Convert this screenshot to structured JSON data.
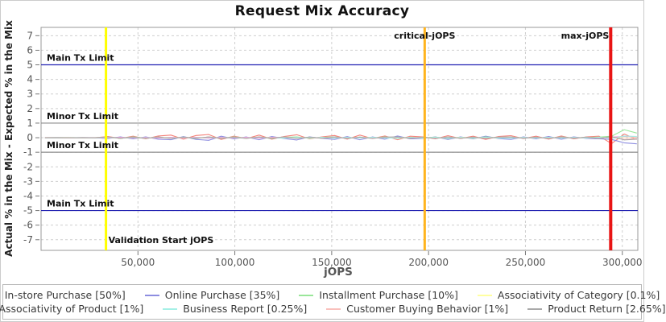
{
  "chart_data": {
    "type": "line",
    "title": "Request Mix Accuracy",
    "xlabel": "jOPS",
    "ylabel": "Actual % in the Mix - Expected % in the Mix",
    "xlim": [
      0,
      308000
    ],
    "ylim": [
      -7.73,
      7.57
    ],
    "grid": true,
    "legend_position": "bottom",
    "x_ticks": [
      {
        "v": 50000,
        "label": "50,000"
      },
      {
        "v": 100000,
        "label": "100,000"
      },
      {
        "v": 150000,
        "label": "150,000"
      },
      {
        "v": 200000,
        "label": "200,000"
      },
      {
        "v": 250000,
        "label": "250,000"
      },
      {
        "v": 300000,
        "label": "300,000"
      }
    ],
    "y_ticks": [
      7,
      6,
      5,
      4,
      3,
      2,
      1,
      0,
      -1,
      -2,
      -3,
      -4,
      -5,
      -6,
      -7
    ],
    "markers": {
      "horizontal": [
        {
          "y": 5,
          "label": "Main Tx Limit",
          "color": "#2323b2"
        },
        {
          "y": 1,
          "label": "Minor Tx Limit",
          "color": "#8a8a8a"
        },
        {
          "y": -1,
          "label": "Minor Tx Limit",
          "color": "#8a8a8a"
        },
        {
          "y": -5,
          "label": "Main Tx Limit",
          "color": "#2323b2"
        }
      ],
      "vertical": [
        {
          "x": 33500,
          "label": "Validation Start jOPS",
          "color": "#ffff00",
          "width": 3,
          "label_pos": "bottom",
          "anchor": "start"
        },
        {
          "x": 198000,
          "label": "critical-jOPS",
          "color": "#ffb41e",
          "width": 3,
          "label_pos": "top",
          "anchor": "middle"
        },
        {
          "x": 294000,
          "label": "max-jOPS",
          "color": "#e81414",
          "width": 4,
          "label_pos": "top",
          "anchor": "end"
        }
      ]
    },
    "x": [
      2000,
      8500,
      15000,
      21500,
      28000,
      34500,
      41000,
      47500,
      54000,
      60500,
      67000,
      73500,
      80000,
      86500,
      93000,
      99500,
      106000,
      112500,
      119000,
      125500,
      132000,
      138500,
      145000,
      151500,
      158000,
      164500,
      171000,
      177500,
      184000,
      190500,
      197000,
      203500,
      210000,
      216500,
      223000,
      229500,
      236000,
      242500,
      249000,
      255500,
      262000,
      268500,
      275000,
      281500,
      288000,
      294500,
      301000,
      307500
    ],
    "series": [
      {
        "name": "In-store Purchase [50%]",
        "color": "#f4827a",
        "values": [
          0.01,
          0,
          0.01,
          -0.01,
          0,
          0.08,
          -0.06,
          0.1,
          -0.08,
          0.12,
          0.18,
          -0.1,
          0.15,
          0.22,
          -0.12,
          0.1,
          -0.06,
          0.18,
          -0.1,
          0.08,
          0.2,
          -0.08,
          0.06,
          0.15,
          -0.1,
          0.18,
          -0.06,
          0.12,
          -0.14,
          0.1,
          0.06,
          -0.08,
          0.14,
          -0.06,
          0.1,
          -0.12,
          0.08,
          0.14,
          -0.06,
          0.1,
          -0.1,
          0.12,
          -0.08,
          0.06,
          0.1,
          -0.4,
          0.25,
          -0.12
        ]
      },
      {
        "name": "Online Purchase [35%]",
        "color": "#8d8de0",
        "values": [
          -0.01,
          0,
          -0.01,
          0.01,
          0,
          -0.06,
          0.05,
          -0.08,
          0.06,
          -0.1,
          -0.14,
          0.08,
          -0.12,
          -0.18,
          0.1,
          -0.08,
          0.05,
          -0.14,
          0.08,
          -0.06,
          -0.16,
          0.06,
          -0.04,
          -0.12,
          0.08,
          -0.14,
          0.05,
          -0.1,
          0.12,
          -0.08,
          -0.05,
          0.06,
          -0.12,
          0.05,
          -0.08,
          0.1,
          -0.06,
          -0.12,
          0.05,
          -0.08,
          0.08,
          -0.1,
          0.06,
          -0.05,
          -0.08,
          -0.12,
          -0.35,
          -0.42
        ]
      },
      {
        "name": "Installment Purchase [10%]",
        "color": "#9ae69a",
        "values": [
          0,
          0.01,
          0,
          -0.01,
          0.01,
          0.03,
          -0.04,
          0.05,
          -0.03,
          0.04,
          -0.05,
          0.04,
          -0.06,
          0.05,
          -0.04,
          0.05,
          -0.03,
          0.04,
          -0.06,
          0.03,
          0.05,
          -0.04,
          0.02,
          0.06,
          -0.05,
          0.04,
          -0.03,
          0.05,
          -0.04,
          0.03,
          -0.02,
          0.04,
          -0.05,
          0.03,
          -0.04,
          0.05,
          -0.03,
          0.04,
          -0.02,
          0.03,
          -0.04,
          0.05,
          -0.03,
          0.02,
          0.04,
          0.1,
          0.55,
          0.32
        ]
      },
      {
        "name": "Associativity of Category [0.1%]",
        "color": "#ffffa0",
        "values": [
          0,
          0,
          0.01,
          -0.01,
          0,
          0.01,
          -0.02,
          0.01,
          0,
          -0.01,
          0.02,
          -0.01,
          0.01,
          -0.02,
          0.01,
          0,
          0.01,
          -0.01,
          0.02,
          -0.01,
          0,
          0.01,
          -0.02,
          0.01,
          -0.01,
          0.02,
          0,
          -0.01,
          0.01,
          -0.02,
          0.01,
          0,
          -0.01,
          0.02,
          -0.01,
          0.01,
          0,
          -0.01,
          0.01,
          -0.02,
          0.01,
          -0.01,
          0,
          0.01,
          -0.01,
          0.02,
          0.05,
          0.03
        ]
      },
      {
        "name": "Associativity of Product [1%]",
        "color": "#ee9ad5",
        "values": [
          0,
          0.01,
          -0.01,
          0,
          0.01,
          -0.02,
          0.03,
          -0.02,
          0.02,
          -0.03,
          0.03,
          -0.02,
          0.03,
          -0.03,
          0.02,
          -0.02,
          0.03,
          -0.03,
          0.02,
          0.03,
          -0.02,
          0.02,
          -0.03,
          0.03,
          -0.02,
          0.02,
          -0.03,
          0.02,
          0.03,
          -0.02,
          0.02,
          -0.03,
          0.03,
          -0.02,
          0.02,
          -0.03,
          0.02,
          0.03,
          -0.02,
          0.02,
          -0.03,
          0.03,
          -0.02,
          0.02,
          -0.03,
          0.04,
          0.08,
          0.05
        ]
      },
      {
        "name": "Business Report [0.25%]",
        "color": "#a5f0e6",
        "values": [
          0,
          -0.01,
          0.01,
          0,
          -0.01,
          0.02,
          -0.03,
          0.02,
          -0.02,
          0.03,
          -0.03,
          0.02,
          -0.02,
          0.03,
          -0.03,
          0.02,
          -0.03,
          0.03,
          -0.02,
          -0.03,
          0.02,
          -0.02,
          0.03,
          -0.03,
          0.02,
          -0.02,
          0.03,
          -0.02,
          -0.03,
          0.02,
          -0.02,
          0.03,
          -0.03,
          0.02,
          -0.02,
          0.03,
          -0.02,
          -0.03,
          0.02,
          -0.02,
          0.03,
          -0.03,
          0.02,
          -0.02,
          0.03,
          -0.05,
          0.12,
          0.08
        ]
      },
      {
        "name": "Customer Buying Behavior [1%]",
        "color": "#f9c0bc",
        "values": [
          0.01,
          0,
          -0.01,
          0.01,
          0,
          0.04,
          -0.03,
          0.03,
          -0.04,
          0.04,
          -0.04,
          0.03,
          -0.03,
          0.04,
          -0.04,
          0.03,
          -0.04,
          0.04,
          -0.03,
          0.04,
          -0.04,
          0.03,
          -0.03,
          0.04,
          -0.04,
          0.03,
          -0.04,
          0.03,
          0.04,
          -0.03,
          0.03,
          -0.04,
          0.04,
          -0.03,
          0.03,
          -0.04,
          0.03,
          0.04,
          -0.03,
          0.03,
          -0.04,
          0.04,
          -0.03,
          0.03,
          -0.04,
          0.06,
          -0.1,
          -0.06
        ]
      },
      {
        "name": "Product Return [2.65%]",
        "color": "#a9a9a9",
        "values": [
          0,
          0.01,
          0,
          0.01,
          -0.01,
          0.05,
          -0.04,
          0.04,
          -0.05,
          0.05,
          -0.05,
          0.04,
          -0.04,
          0.05,
          -0.05,
          0.04,
          -0.05,
          0.05,
          -0.04,
          0.05,
          -0.05,
          0.04,
          -0.04,
          0.05,
          -0.05,
          0.04,
          -0.05,
          0.04,
          0.05,
          -0.04,
          0.04,
          -0.05,
          0.05,
          -0.04,
          0.04,
          -0.05,
          0.04,
          0.05,
          -0.04,
          0.04,
          -0.05,
          0.05,
          -0.04,
          0.04,
          -0.05,
          0.08,
          -0.15,
          -0.1
        ]
      }
    ]
  }
}
